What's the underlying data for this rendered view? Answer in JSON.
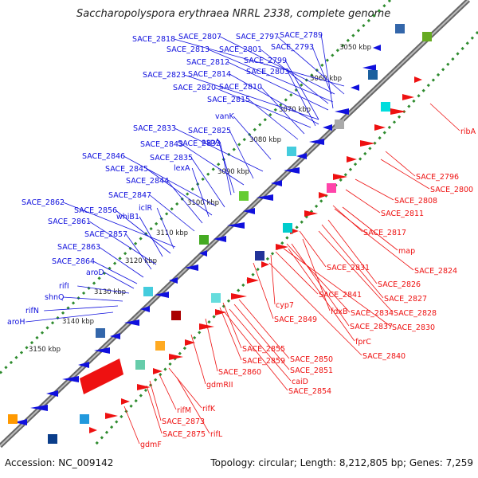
{
  "header": {
    "title": "Saccharopolyspora erythraea NRRL 2338, complete genome"
  },
  "footer": {
    "accession": "Accession: NC_009142",
    "summary": "Topology: circular; Length: 8,212,805 bp; Genes: 7,259"
  },
  "colors": {
    "forward_strand": "#1010dd",
    "reverse_strand": "#ee1111",
    "backbone": "#888888",
    "tick_dots": "#2e8b2e"
  },
  "scale_labels": [
    "3050 kbp",
    "3060 kbp",
    "3070 kbp",
    "3080 kbp",
    "3090 kbp",
    "3100 kbp",
    "3110 kbp",
    "3120 kbp",
    "3130 kbp",
    "3140 kbp",
    "3150 kbp"
  ],
  "forward_labels": [
    "SACE_2818",
    "SACE_2807",
    "SACE_2797",
    "SACE_2789",
    "SACE_2813",
    "SACE_2801",
    "SACE_2793",
    "SACE_2812",
    "SACE_2799",
    "SACE_2823",
    "SACE_2814",
    "SACE_2803",
    "SACE_2820",
    "SACE_2810",
    "SACE_2815",
    "vanK",
    "SACE_2833",
    "SACE_2825",
    "SACE_2843",
    "SACE_2832",
    "aspA",
    "SACE_2846",
    "SACE_2835",
    "SACE_2845",
    "lexA",
    "SACE_2844",
    "SACE_2847",
    "SACE_2862",
    "iclR",
    "SACE_2856",
    "whiB1",
    "SACE_2861",
    "SACE_2857",
    "SACE_2863",
    "SACE_2864",
    "aroD",
    "rifI",
    "shnQ",
    "rifN",
    "aroH"
  ],
  "reverse_labels": [
    "ribA",
    "SACE_2796",
    "SACE_2800",
    "SACE_2808",
    "SACE_2811",
    "SACE_2817",
    "map",
    "SACE_2824",
    "SACE_2831",
    "SACE_2826",
    "SACE_2841",
    "SACE_2827",
    "cyp7",
    "fdxB",
    "SACE_2834",
    "SACE_2828",
    "SACE_2849",
    "SACE_2837",
    "SACE_2830",
    "fprC",
    "SACE_2855",
    "SACE_2840",
    "SACE_2859",
    "SACE_2850",
    "SACE_2860",
    "SACE_2851",
    "caiD",
    "SACE_2854",
    "gdmRII",
    "rifK",
    "rifM",
    "SACE_2873",
    "rifL",
    "SACE_2875",
    "gdmF"
  ]
}
